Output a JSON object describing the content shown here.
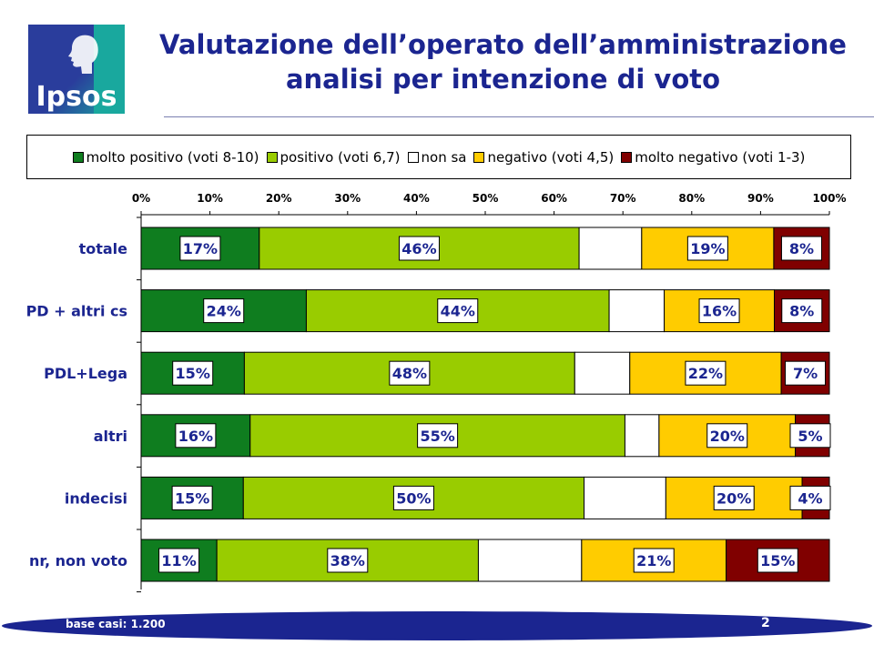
{
  "header": {
    "logo_text": "Ipsos",
    "title_line1": "Valutazione dell’operato dell’amministrazione",
    "title_line2": "analisi per intenzione di voto"
  },
  "footer": {
    "base_label": "base casi: 1.200",
    "page_number": "2"
  },
  "colors": {
    "title": "#1b2590",
    "footer_bar": "#1b2590"
  },
  "chart_data": {
    "type": "bar",
    "orientation": "horizontal",
    "stacked": "percent",
    "categories": [
      "totale",
      "PD + altri cs",
      "PDL+Lega",
      "altri",
      "indecisi",
      "nr, non voto"
    ],
    "series": [
      {
        "name": "molto positivo (voti 8-10)",
        "color": "#0f7d1f",
        "values": [
          17,
          24,
          15,
          16,
          15,
          11
        ]
      },
      {
        "name": "positivo (voti 6,7)",
        "color": "#99cc00",
        "values": [
          46,
          44,
          48,
          55,
          50,
          38
        ]
      },
      {
        "name": "non sa",
        "color": "#ffffff",
        "values": [
          9,
          8,
          8,
          5,
          12,
          15
        ]
      },
      {
        "name": "negativo (voti 4,5)",
        "color": "#ffcc00",
        "values": [
          19,
          16,
          22,
          20,
          20,
          21
        ]
      },
      {
        "name": "molto negativo (voti 1-3)",
        "color": "#800000",
        "values": [
          8,
          8,
          7,
          5,
          4,
          15
        ]
      }
    ],
    "data_labels": [
      [
        "17%",
        "46%",
        null,
        "19%",
        "8%"
      ],
      [
        "24%",
        "44%",
        null,
        "16%",
        "8%"
      ],
      [
        "15%",
        "48%",
        null,
        "22%",
        "7%"
      ],
      [
        "16%",
        "55%",
        null,
        "20%",
        "5%"
      ],
      [
        "15%",
        "50%",
        null,
        "20%",
        "4%"
      ],
      [
        "11%",
        "38%",
        null,
        "21%",
        "15%"
      ]
    ],
    "x_ticks": [
      "0%",
      "10%",
      "20%",
      "30%",
      "40%",
      "50%",
      "60%",
      "70%",
      "80%",
      "90%",
      "100%"
    ],
    "xlim": [
      0,
      100
    ],
    "x_axis_position": "top",
    "legend_position": "top",
    "grid": false
  }
}
